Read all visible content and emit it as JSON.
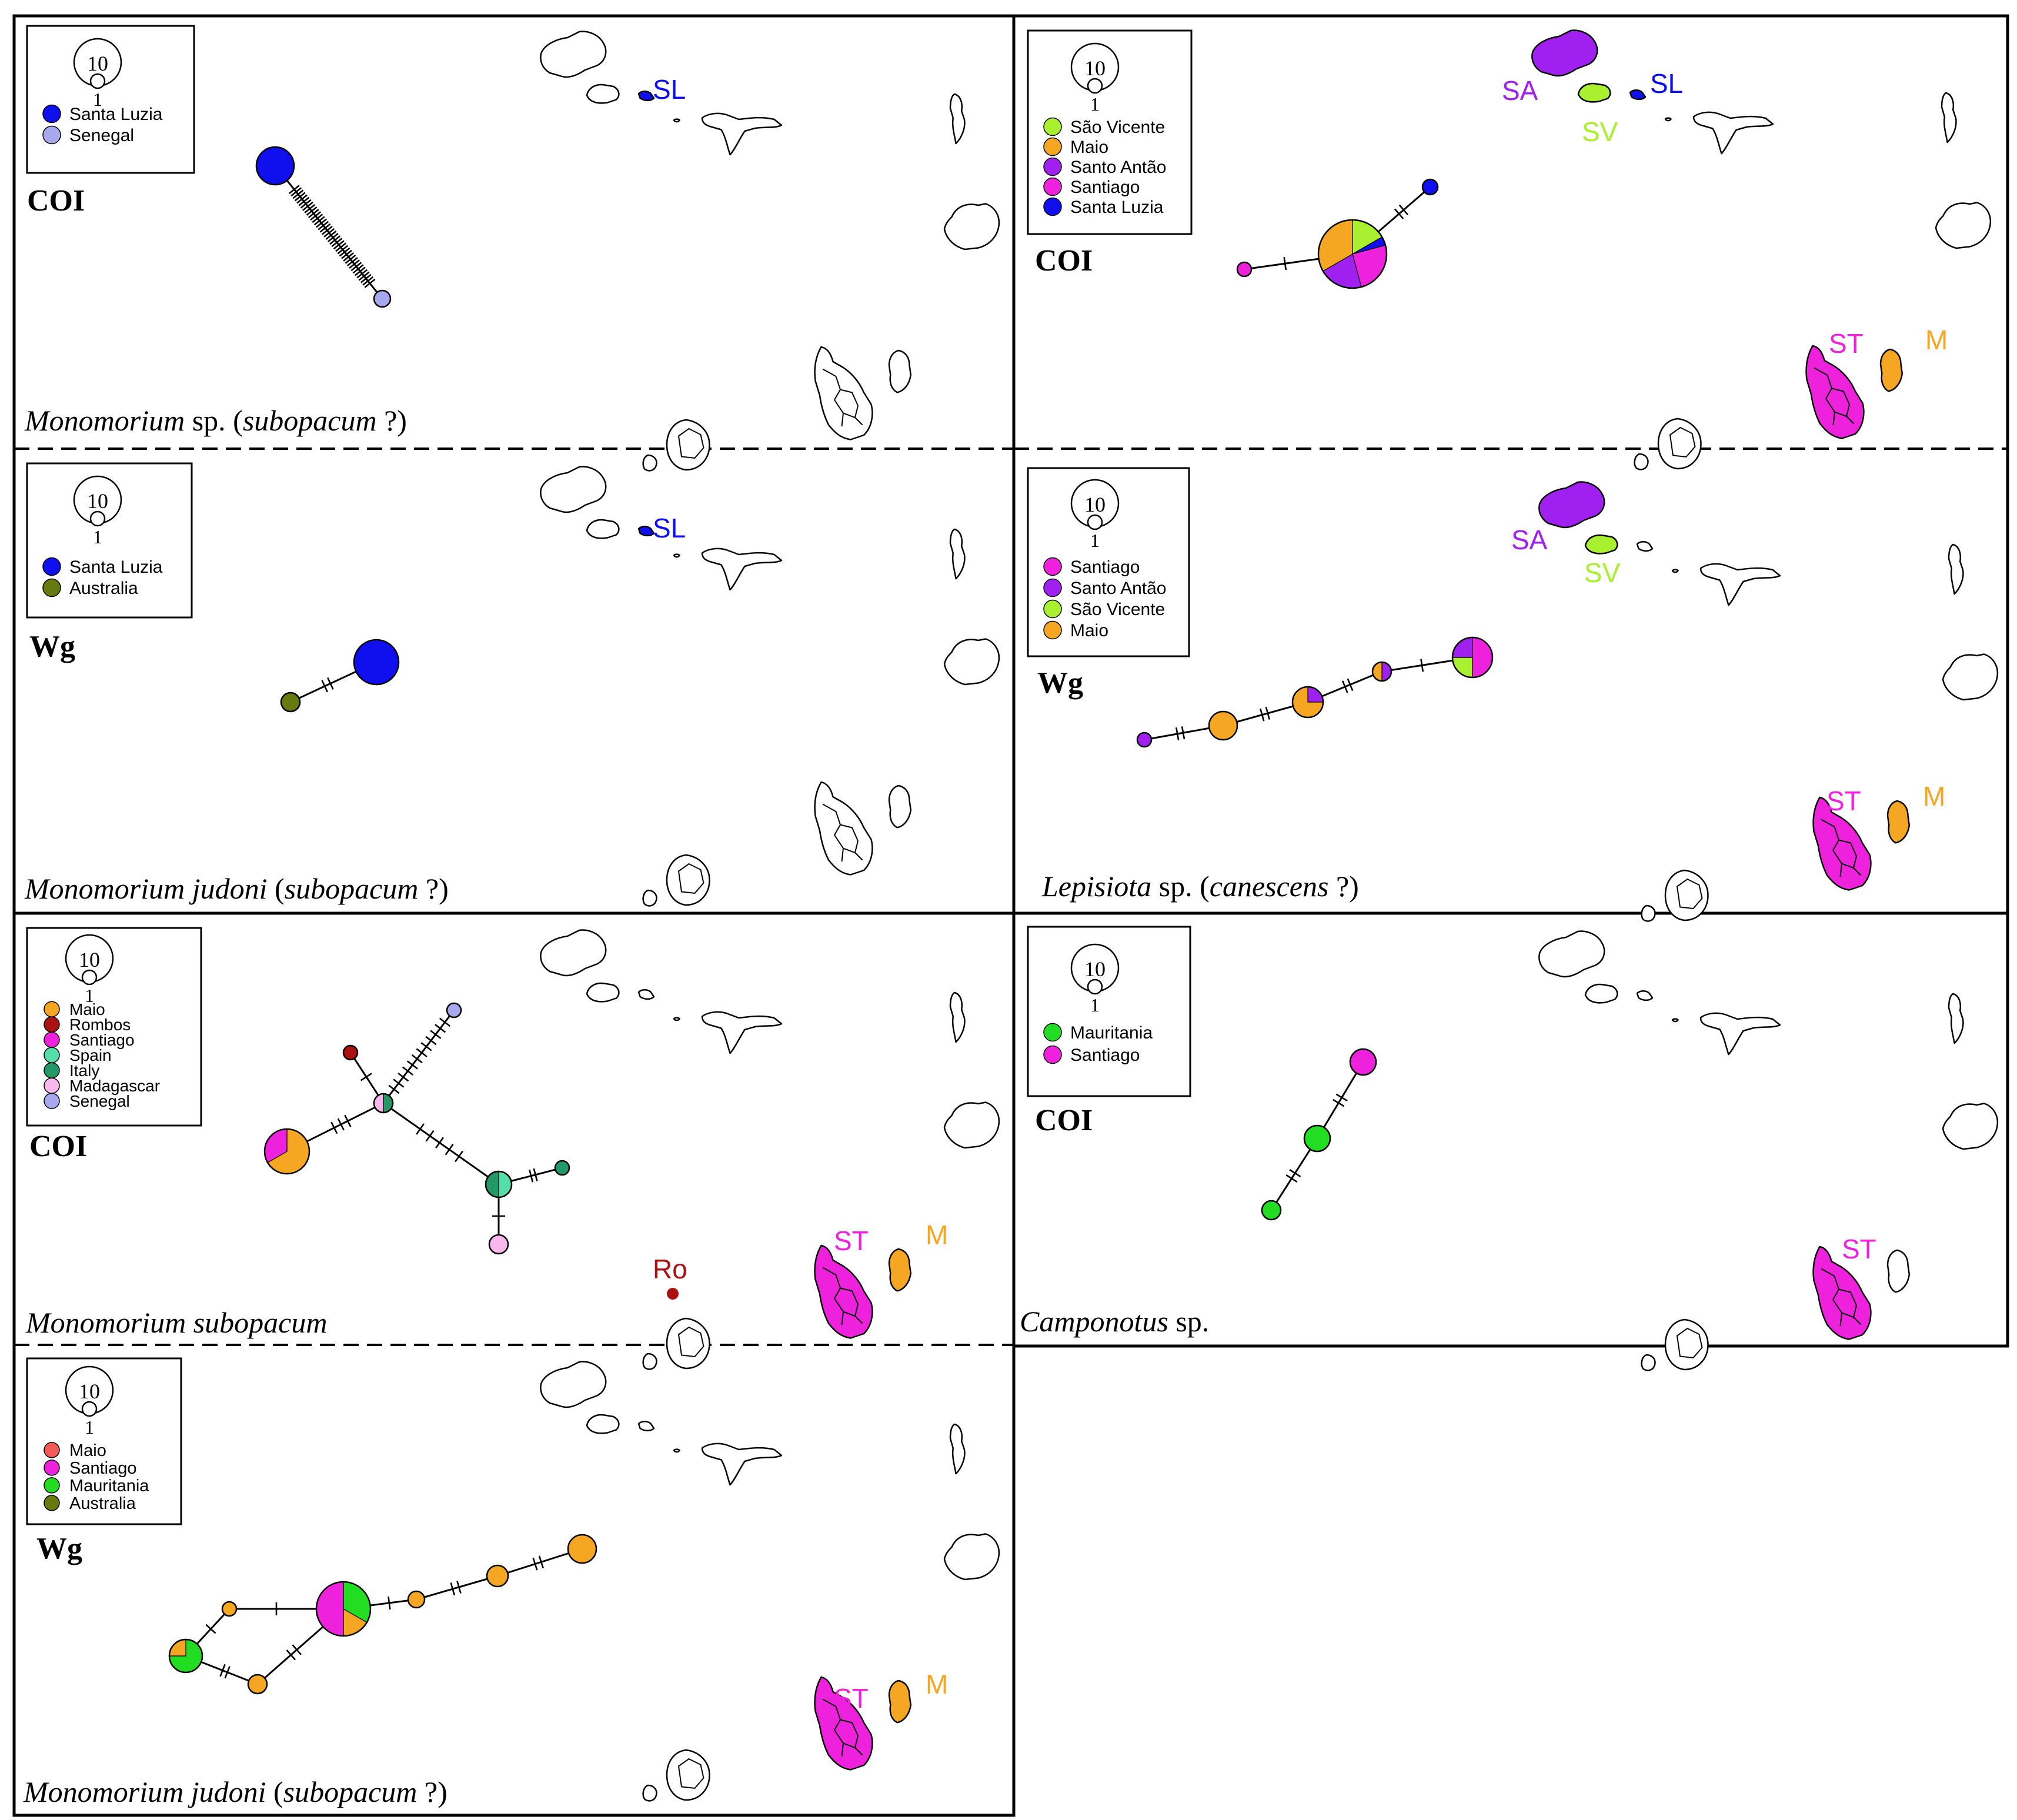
{
  "colors": {
    "maio": "#f5a623",
    "santiago": "#ee22dd",
    "santo_antao": "#a020f0",
    "sao_vicente": "#a8f030",
    "santa_luzia": "#1010ee",
    "senegal": "#a8a8ee",
    "australia": "#667a10",
    "mauritania": "#22dd22",
    "rombos": "#aa1111",
    "spain": "#55ddaa",
    "italy": "#229966",
    "madagascar": "#f8b8ee",
    "maio_d": "#f05a5a"
  },
  "scale": {
    "large": "10",
    "small": "1"
  },
  "panels": [
    {
      "id": "A",
      "marker": "COI",
      "species": [
        {
          "t": "Monomorium",
          "i": true
        },
        {
          "t": " sp. (",
          "i": false
        },
        {
          "t": "subopacum",
          "i": true
        },
        {
          "t": " ?)",
          "i": false
        }
      ],
      "legend": [
        {
          "label": "Santa Luzia",
          "color": "santa_luzia"
        },
        {
          "label": "Senegal",
          "color": "senegal"
        }
      ],
      "map_labels": [
        {
          "text": "SL",
          "color": "santa_luzia"
        }
      ]
    },
    {
      "id": "B",
      "marker": "Wg",
      "species": [
        {
          "t": "Monomorium judoni",
          "i": true
        },
        {
          "t": " (",
          "i": false
        },
        {
          "t": "subopacum",
          "i": true
        },
        {
          "t": " ?)",
          "i": false
        }
      ],
      "legend": [
        {
          "label": "Santa Luzia",
          "color": "santa_luzia"
        },
        {
          "label": "Australia",
          "color": "australia"
        }
      ],
      "map_labels": [
        {
          "text": "SL",
          "color": "santa_luzia"
        }
      ]
    },
    {
      "id": "C",
      "marker": "COI",
      "species": [
        {
          "t": "Monomorium subopacum",
          "i": true
        }
      ],
      "legend": [
        {
          "label": "Maio",
          "color": "maio"
        },
        {
          "label": "Rombos",
          "color": "rombos"
        },
        {
          "label": "Santiago",
          "color": "santiago"
        },
        {
          "label": "Spain",
          "color": "spain"
        },
        {
          "label": "Italy",
          "color": "italy"
        },
        {
          "label": "Madagascar",
          "color": "madagascar"
        },
        {
          "label": "Senegal",
          "color": "senegal"
        }
      ],
      "map_labels": [
        {
          "text": "ST",
          "color": "santiago"
        },
        {
          "text": "M",
          "color": "maio"
        },
        {
          "text": "Ro",
          "color": "rombos"
        }
      ]
    },
    {
      "id": "D",
      "marker": "Wg",
      "species": [
        {
          "t": "Monomorium judoni",
          "i": true
        },
        {
          "t": " (",
          "i": false
        },
        {
          "t": "subopacum",
          "i": true
        },
        {
          "t": " ?)",
          "i": false
        }
      ],
      "legend": [
        {
          "label": "Maio",
          "color": "maio_d"
        },
        {
          "label": "Santiago",
          "color": "santiago"
        },
        {
          "label": "Mauritania",
          "color": "mauritania"
        },
        {
          "label": "Australia",
          "color": "australia"
        }
      ],
      "map_labels": [
        {
          "text": "ST",
          "color": "santiago"
        },
        {
          "text": "M",
          "color": "maio"
        }
      ]
    },
    {
      "id": "E",
      "marker": "COI",
      "species": [],
      "legend": [
        {
          "label": "São Vicente",
          "color": "sao_vicente"
        },
        {
          "label": "Maio",
          "color": "maio"
        },
        {
          "label": "Santo Antão",
          "color": "santo_antao"
        },
        {
          "label": "Santiago",
          "color": "santiago"
        },
        {
          "label": "Santa Luzia",
          "color": "santa_luzia"
        }
      ],
      "map_labels": [
        {
          "text": "SA",
          "color": "santo_antao"
        },
        {
          "text": "SV",
          "color": "sao_vicente"
        },
        {
          "text": "SL",
          "color": "santa_luzia"
        },
        {
          "text": "ST",
          "color": "santiago"
        },
        {
          "text": "M",
          "color": "maio"
        }
      ]
    },
    {
      "id": "F",
      "marker": "Wg",
      "species": [
        {
          "t": "Lepisiota",
          "i": true
        },
        {
          "t": " sp. (",
          "i": false
        },
        {
          "t": "canescens",
          "i": true
        },
        {
          "t": " ?)",
          "i": false
        }
      ],
      "legend": [
        {
          "label": "Santiago",
          "color": "santiago"
        },
        {
          "label": "Santo Antão",
          "color": "santo_antao"
        },
        {
          "label": "São Vicente",
          "color": "sao_vicente"
        },
        {
          "label": "Maio",
          "color": "maio"
        }
      ],
      "map_labels": [
        {
          "text": "SA",
          "color": "santo_antao"
        },
        {
          "text": "SV",
          "color": "sao_vicente"
        },
        {
          "text": "ST",
          "color": "santiago"
        },
        {
          "text": "M",
          "color": "maio"
        }
      ]
    },
    {
      "id": "G",
      "marker": "COI",
      "species": [
        {
          "t": "Camponotus",
          "i": true
        },
        {
          "t": " sp.",
          "i": false
        }
      ],
      "legend": [
        {
          "label": "Mauritania",
          "color": "mauritania"
        },
        {
          "label": "Santiago",
          "color": "santiago"
        }
      ],
      "map_labels": [
        {
          "text": "ST",
          "color": "santiago"
        }
      ]
    }
  ]
}
